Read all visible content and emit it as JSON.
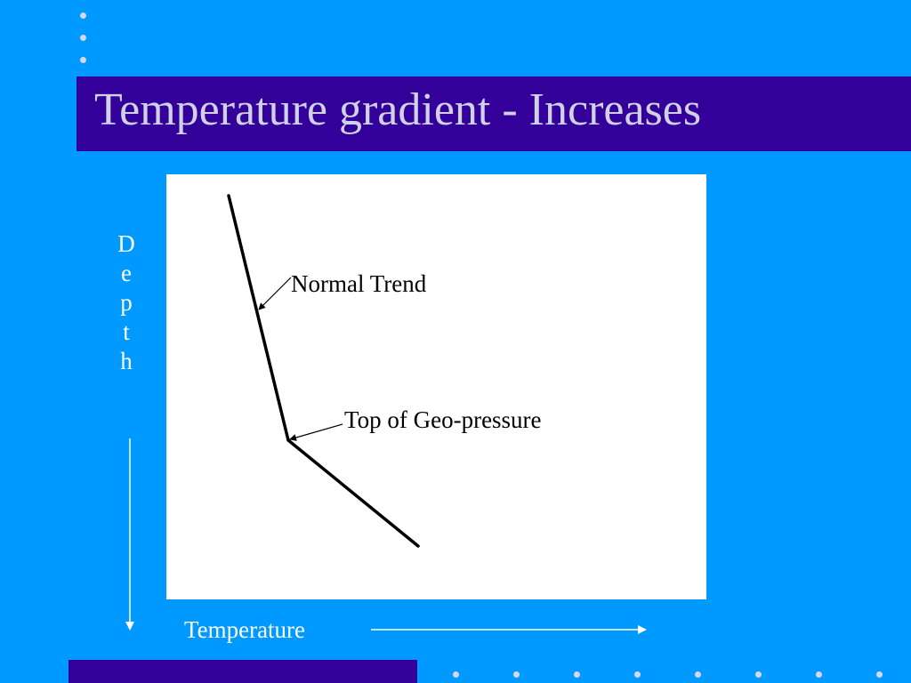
{
  "slide": {
    "title": "Temperature gradient - Increases"
  },
  "diagram": {
    "y_axis_label": "Depth",
    "x_axis_label": "Temperature",
    "annotations": {
      "normal_trend": "Normal Trend",
      "top_geo_pressure": "Top of Geo-pressure"
    }
  },
  "colors": {
    "background": "#0099ff",
    "title_bar": "#330099",
    "title_text": "#d0d0e6",
    "panel": "#ffffff",
    "line": "#000000",
    "axis_label": "#ffffff"
  }
}
